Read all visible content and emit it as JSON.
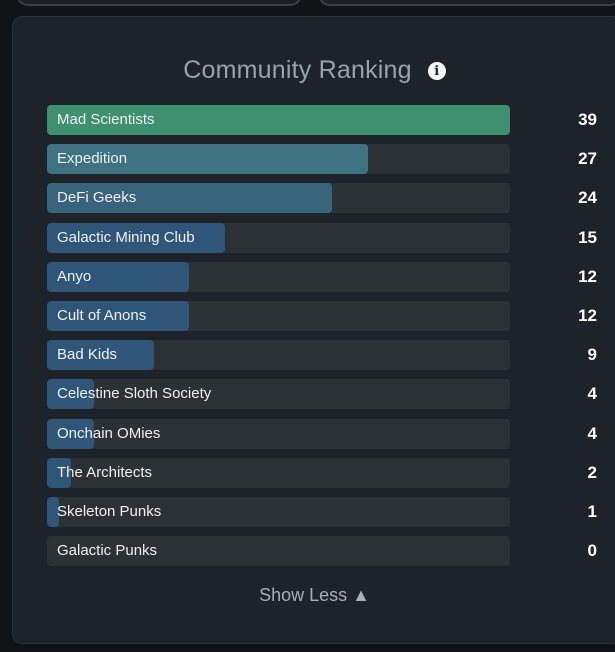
{
  "chart_data": {
    "type": "bar",
    "orientation": "horizontal",
    "title": "Community Ranking",
    "categories": [
      "Mad Scientists",
      "Expedition",
      "DeFi Geeks",
      "Galactic Mining Club",
      "Anyo",
      "Cult of Anons",
      "Bad Kids",
      "Celestine Sloth Society",
      "Onchain OMies",
      "The Architects",
      "Skeleton Punks",
      "Galactic Punks"
    ],
    "values": [
      39,
      27,
      24,
      15,
      12,
      12,
      9,
      4,
      4,
      2,
      1,
      0
    ],
    "xlim": [
      0,
      39
    ],
    "grid": false,
    "legend": "none",
    "colors": {
      "top": "#3f8f72",
      "mid_teal": "#3f7f86",
      "blue": "#2f5578",
      "track": "#2c3135"
    }
  },
  "ui": {
    "info_icon": "info-icon",
    "show_less_label": "Show Less ▲"
  }
}
